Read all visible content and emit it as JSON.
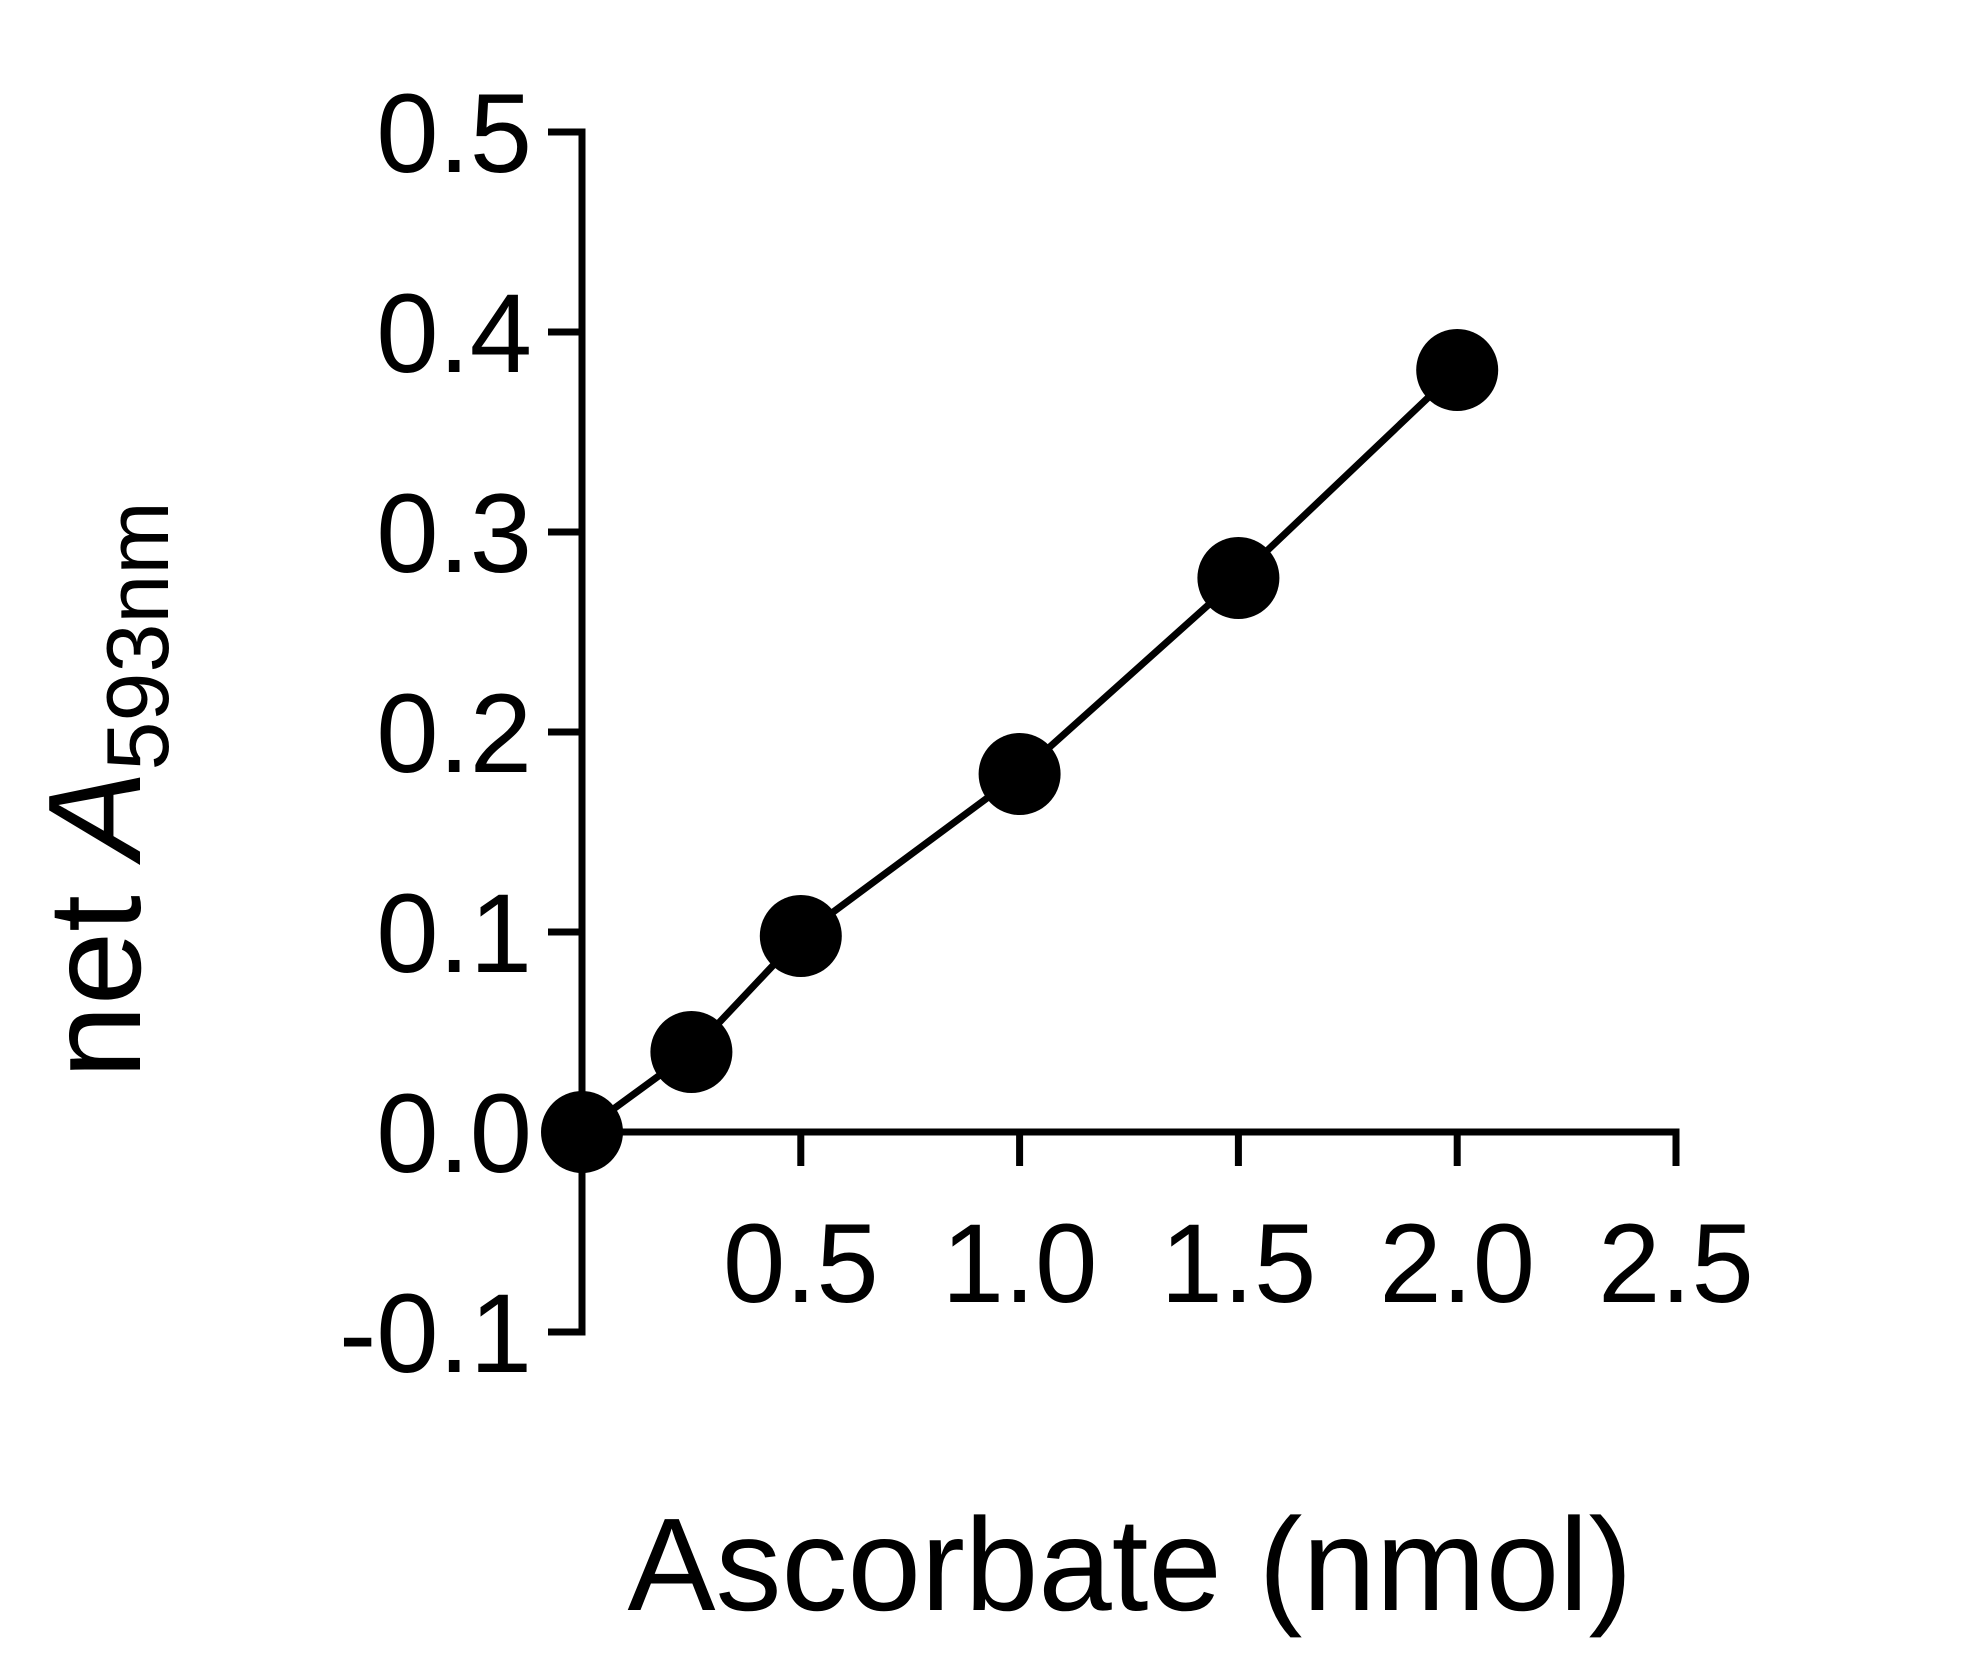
{
  "chart_data": {
    "type": "line",
    "title": "",
    "xlabel": "Ascorbate (nmol)",
    "ylabel": {
      "prefix": "net ",
      "symbol": "A",
      "subscript": "593nm"
    },
    "xlim": [
      0,
      2.5
    ],
    "ylim": [
      -0.1,
      0.5
    ],
    "xticks": [
      0.5,
      1.0,
      1.5,
      2.0,
      2.5
    ],
    "xtick_labels": [
      "0.5",
      "1.0",
      "1.5",
      "2.0",
      "2.5"
    ],
    "yticks": [
      -0.1,
      0.0,
      0.1,
      0.2,
      0.3,
      0.4,
      0.5
    ],
    "ytick_labels": [
      "-0.1",
      "0.0",
      "0.1",
      "0.2",
      "0.3",
      "0.4",
      "0.5"
    ],
    "grid": false,
    "legend": "none",
    "series": [
      {
        "x": [
          0,
          0.25,
          0.5,
          1.0,
          1.5,
          2.0
        ],
        "y": [
          0.0,
          0.04,
          0.098,
          0.179,
          0.277,
          0.381
        ],
        "marker": "filled-circle",
        "line": "solid",
        "color": "#000000"
      }
    ]
  }
}
